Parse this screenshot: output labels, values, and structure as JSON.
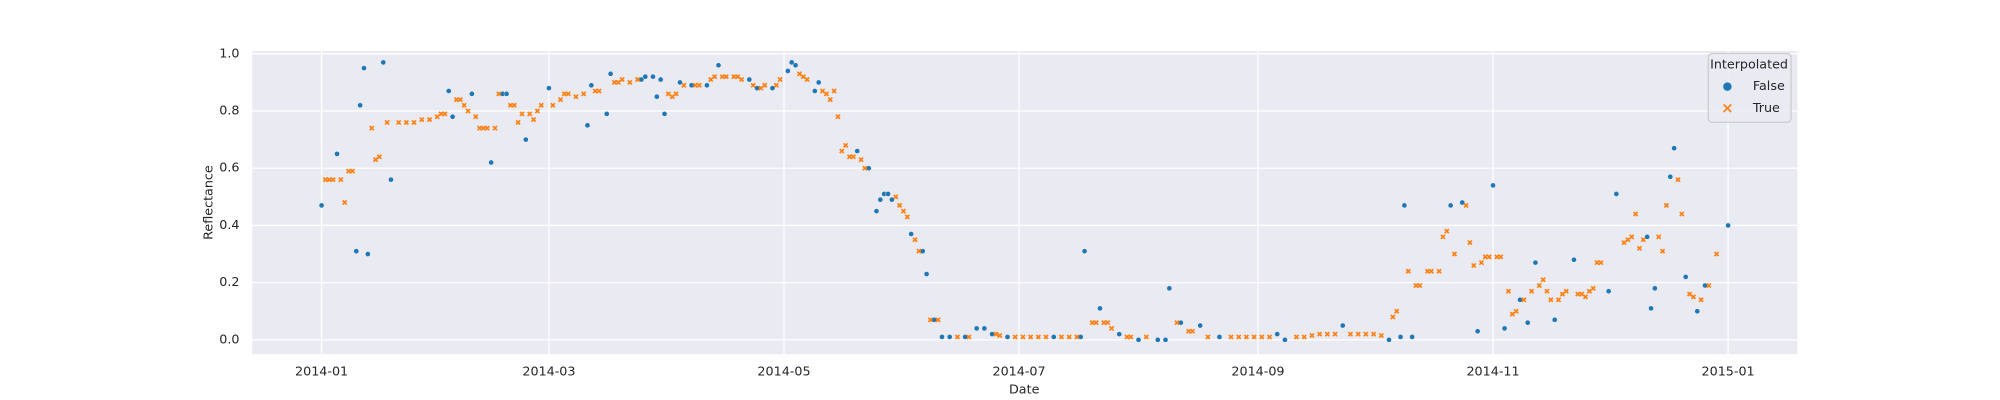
{
  "chart_data": {
    "type": "scatter",
    "xlabel": "Date",
    "ylabel": "Reflectance",
    "legend_title": "Interpolated",
    "legend": "upper right",
    "grid": true,
    "xlim": [
      -18,
      383
    ],
    "ylim": [
      -0.05,
      1.01
    ],
    "xticks": [
      {
        "value": 0,
        "label": "2014-01"
      },
      {
        "value": 59,
        "label": "2014-03"
      },
      {
        "value": 120,
        "label": "2014-05"
      },
      {
        "value": 181,
        "label": "2014-07"
      },
      {
        "value": 243,
        "label": "2014-09"
      },
      {
        "value": 304,
        "label": "2014-11"
      },
      {
        "value": 365,
        "label": "2015-01"
      }
    ],
    "yticks": [
      {
        "value": 0,
        "label": "0.0"
      },
      {
        "value": 0.2,
        "label": "0.2"
      },
      {
        "value": 0.4,
        "label": "0.4"
      },
      {
        "value": 0.6,
        "label": "0.6"
      },
      {
        "value": 0.8,
        "label": "0.8"
      },
      {
        "value": 1,
        "label": "1.0"
      }
    ],
    "series": [
      {
        "name": "False",
        "color": "#1f77b4",
        "marker": "circle",
        "x": [
          0,
          4,
          9,
          10,
          11,
          12,
          16,
          18,
          33,
          34,
          39,
          44,
          47,
          48,
          53,
          59,
          69,
          70,
          74,
          75,
          83,
          84,
          86,
          87,
          88,
          89,
          93,
          96,
          100,
          103,
          111,
          113,
          117,
          121,
          122,
          123,
          128,
          129,
          139,
          142,
          144,
          145,
          146,
          147,
          148,
          153,
          156,
          157,
          159,
          161,
          163,
          167,
          170,
          172,
          174,
          178,
          190,
          197,
          198,
          202,
          207,
          212,
          217,
          219,
          220,
          223,
          228,
          233,
          248,
          250,
          265,
          277,
          280,
          281,
          283,
          293,
          296,
          300,
          304,
          307,
          311,
          313,
          315,
          320,
          325,
          334,
          336,
          344,
          345,
          346,
          350,
          351,
          354,
          357,
          359,
          365
        ],
        "values": [
          0.47,
          0.65,
          0.31,
          0.82,
          0.95,
          0.3,
          0.97,
          0.56,
          0.87,
          0.78,
          0.86,
          0.62,
          0.86,
          0.86,
          0.7,
          0.88,
          0.75,
          0.89,
          0.79,
          0.93,
          0.91,
          0.92,
          0.92,
          0.85,
          0.91,
          0.79,
          0.9,
          0.89,
          0.89,
          0.96,
          0.91,
          0.88,
          0.88,
          0.94,
          0.97,
          0.96,
          0.87,
          0.9,
          0.66,
          0.6,
          0.45,
          0.49,
          0.51,
          0.51,
          0.49,
          0.37,
          0.31,
          0.23,
          0.07,
          0.01,
          0.01,
          0.01,
          0.04,
          0.04,
          0.02,
          0.01,
          0.01,
          0.01,
          0.31,
          0.11,
          0.02,
          0.0,
          0.0,
          0.0,
          0.18,
          0.06,
          0.05,
          0.01,
          0.02,
          0.0,
          0.05,
          0.0,
          0.01,
          0.47,
          0.01,
          0.47,
          0.48,
          0.03,
          0.54,
          0.04,
          0.14,
          0.06,
          0.27,
          0.07,
          0.28,
          0.17,
          0.51,
          0.36,
          0.11,
          0.18,
          0.57,
          0.67,
          0.22,
          0.1,
          0.19,
          0.4
        ]
      },
      {
        "name": "True",
        "color": "#ff7f0e",
        "marker": "x",
        "x": [
          1,
          2,
          3,
          5,
          6,
          7,
          8,
          13,
          14,
          15,
          17,
          20,
          22,
          24,
          26,
          28,
          30,
          31,
          32,
          35,
          36,
          37,
          38,
          40,
          41,
          42,
          43,
          45,
          46,
          49,
          50,
          51,
          52,
          54,
          55,
          56,
          57,
          60,
          62,
          63,
          64,
          66,
          68,
          71,
          72,
          76,
          77,
          78,
          80,
          82,
          90,
          91,
          92,
          94,
          97,
          98,
          101,
          102,
          104,
          105,
          107,
          108,
          109,
          112,
          114,
          115,
          118,
          119,
          124,
          125,
          126,
          130,
          131,
          132,
          133,
          134,
          135,
          136,
          137,
          138,
          140,
          141,
          149,
          150,
          151,
          152,
          154,
          155,
          158,
          160,
          165,
          168,
          175,
          176,
          180,
          182,
          184,
          186,
          188,
          192,
          194,
          196,
          200,
          201,
          203,
          204,
          205,
          209,
          210,
          214,
          222,
          225,
          226,
          230,
          236,
          238,
          240,
          242,
          244,
          246,
          253,
          255,
          257,
          259,
          261,
          263,
          267,
          269,
          271,
          273,
          275,
          278,
          279,
          282,
          284,
          285,
          287,
          288,
          290,
          291,
          292,
          294,
          297,
          298,
          299,
          301,
          302,
          303,
          305,
          306,
          308,
          309,
          310,
          312,
          314,
          316,
          317,
          318,
          319,
          321,
          322,
          323,
          326,
          327,
          328,
          329,
          330,
          331,
          332,
          338,
          339,
          340,
          341,
          342,
          343,
          347,
          348,
          349,
          352,
          353,
          355,
          356,
          358,
          360,
          362
        ],
        "values": [
          0.56,
          0.56,
          0.56,
          0.56,
          0.48,
          0.59,
          0.59,
          0.74,
          0.63,
          0.64,
          0.76,
          0.76,
          0.76,
          0.76,
          0.77,
          0.77,
          0.78,
          0.79,
          0.79,
          0.84,
          0.84,
          0.82,
          0.8,
          0.78,
          0.74,
          0.74,
          0.74,
          0.74,
          0.86,
          0.82,
          0.82,
          0.76,
          0.79,
          0.79,
          0.77,
          0.8,
          0.82,
          0.82,
          0.84,
          0.86,
          0.86,
          0.85,
          0.86,
          0.87,
          0.87,
          0.9,
          0.9,
          0.91,
          0.9,
          0.91,
          0.86,
          0.85,
          0.86,
          0.89,
          0.89,
          0.89,
          0.91,
          0.92,
          0.92,
          0.92,
          0.92,
          0.92,
          0.91,
          0.89,
          0.88,
          0.89,
          0.89,
          0.91,
          0.93,
          0.92,
          0.91,
          0.87,
          0.86,
          0.84,
          0.87,
          0.78,
          0.66,
          0.68,
          0.64,
          0.64,
          0.63,
          0.6,
          0.5,
          0.47,
          0.45,
          0.43,
          0.35,
          0.31,
          0.07,
          0.07,
          0.01,
          0.01,
          0.02,
          0.015,
          0.01,
          0.01,
          0.01,
          0.01,
          0.01,
          0.01,
          0.01,
          0.01,
          0.06,
          0.06,
          0.06,
          0.06,
          0.04,
          0.01,
          0.01,
          0.01,
          0.06,
          0.03,
          0.03,
          0.01,
          0.01,
          0.01,
          0.01,
          0.01,
          0.01,
          0.01,
          0.01,
          0.01,
          0.015,
          0.02,
          0.02,
          0.02,
          0.02,
          0.02,
          0.02,
          0.02,
          0.015,
          0.08,
          0.1,
          0.24,
          0.19,
          0.19,
          0.24,
          0.24,
          0.24,
          0.36,
          0.38,
          0.3,
          0.47,
          0.34,
          0.26,
          0.27,
          0.29,
          0.29,
          0.29,
          0.29,
          0.17,
          0.09,
          0.1,
          0.14,
          0.17,
          0.19,
          0.21,
          0.17,
          0.14,
          0.14,
          0.16,
          0.17,
          0.16,
          0.16,
          0.15,
          0.17,
          0.18,
          0.27,
          0.27,
          0.34,
          0.35,
          0.36,
          0.44,
          0.32,
          0.35,
          0.36,
          0.31,
          0.47,
          0.56,
          0.44,
          0.16,
          0.15,
          0.14,
          0.19,
          0.3
        ]
      }
    ]
  }
}
